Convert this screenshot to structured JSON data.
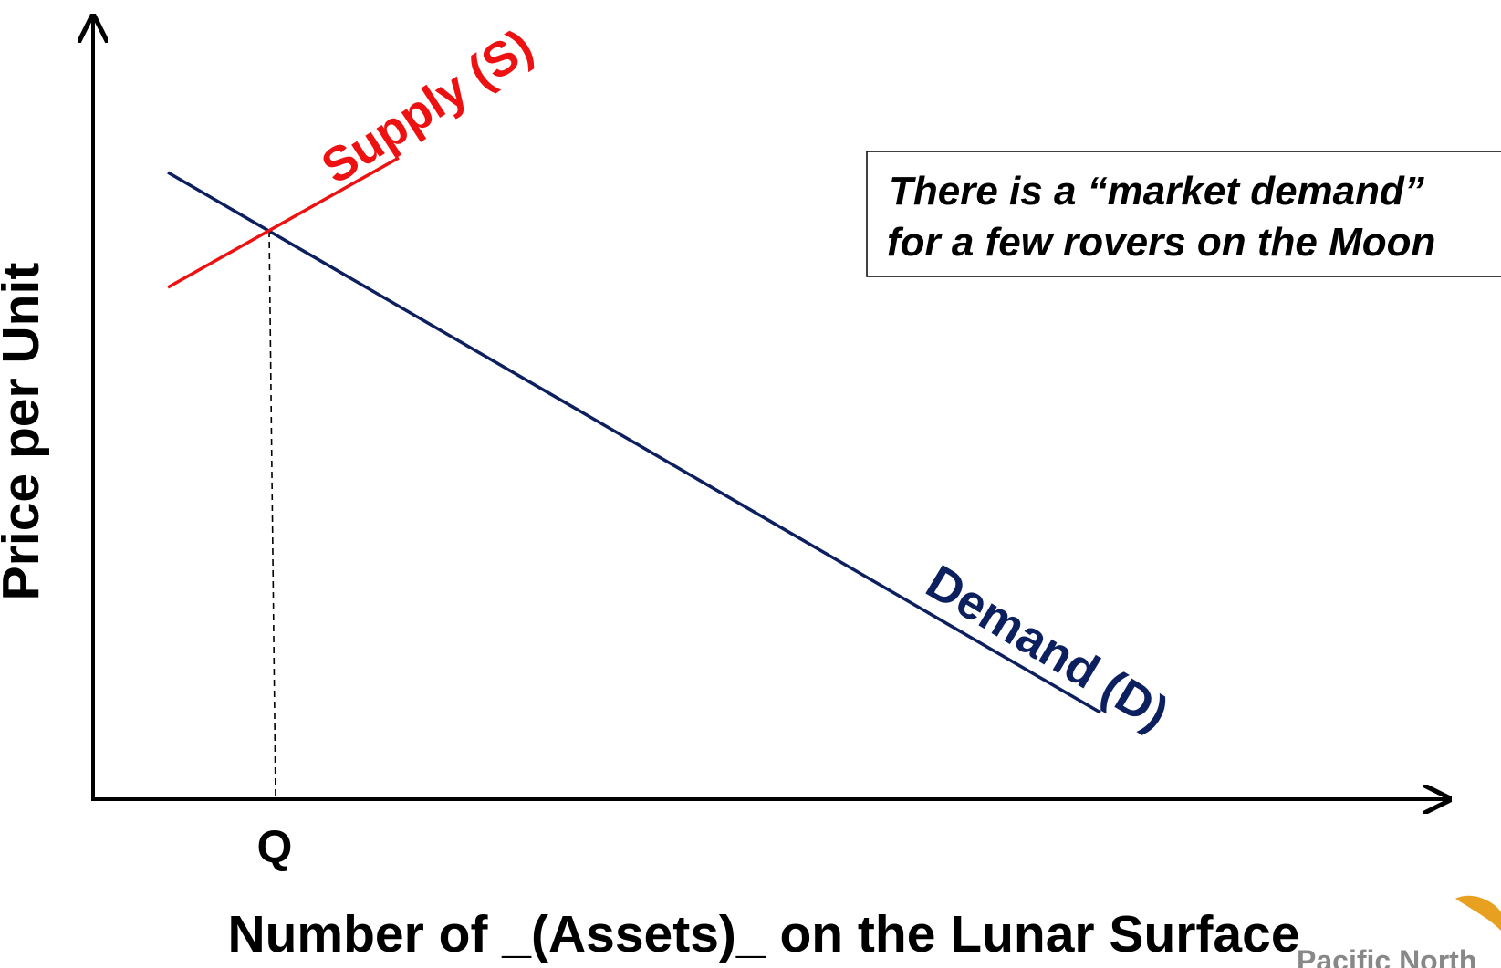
{
  "diagram": {
    "y_axis_label": "Price per Unit",
    "x_axis_label": "Number of _(Assets)_ on the Lunar Surface",
    "quantity_label": "Q",
    "supply_label": "Supply (S)",
    "demand_label": "Demand (D)",
    "note": {
      "lines": [
        "There is a “market demand”",
        "for a few rovers on the Moon"
      ]
    },
    "logo_text": "Pacific North"
  }
}
